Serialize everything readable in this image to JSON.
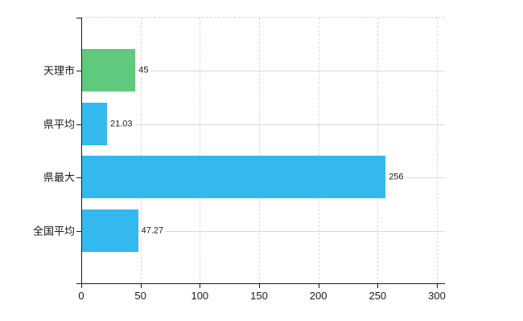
{
  "chart_data": {
    "type": "bar",
    "orientation": "horizontal",
    "title": "",
    "xlabel": "",
    "ylabel": "",
    "categories": [
      "天理市",
      "県平均",
      "県最大",
      "全国平均"
    ],
    "values": [
      45,
      21.03,
      256,
      47.27
    ],
    "value_labels": [
      "45",
      "21.03",
      "256",
      "47.27"
    ],
    "bar_colors": [
      "#5fca7d",
      "#33b9ee",
      "#33b9ee",
      "#33b9ee"
    ],
    "x_tick_labels": [
      "0",
      "50",
      "100",
      "150",
      "200",
      "250",
      "300"
    ],
    "x_tick_values": [
      0,
      50,
      100,
      150,
      200,
      250,
      300
    ],
    "xlim": [
      0,
      300
    ],
    "legend": "none",
    "grid": {
      "vertical": "dashed",
      "top_border": "dashed",
      "horizontal_category_lines": "solid"
    }
  },
  "colors": {
    "background": "#ffffff",
    "axis": "#1a1a1a",
    "gridline": "#d9d9d9",
    "bar_green": "#5fca7d",
    "bar_blue": "#33b9ee",
    "text": "#1a1a1a"
  }
}
